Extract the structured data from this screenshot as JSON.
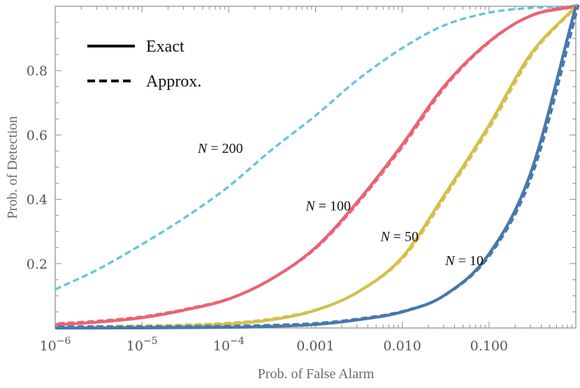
{
  "chart_data": {
    "type": "line",
    "title": "",
    "xlabel": "Prob. of False Alarm",
    "ylabel": "Prob. of Detection",
    "xscale": "log",
    "xlim": [
      1e-06,
      1
    ],
    "ylim": [
      0,
      1
    ],
    "xticks": [
      {
        "value": 1e-06,
        "base": "10",
        "exp": "−6"
      },
      {
        "value": 1e-05,
        "base": "10",
        "exp": "−5"
      },
      {
        "value": 0.0001,
        "base": "10",
        "exp": "−4"
      },
      {
        "value": 0.001,
        "label": "0.001"
      },
      {
        "value": 0.01,
        "label": "0.010"
      },
      {
        "value": 0.1,
        "label": "0.100"
      }
    ],
    "yticks": [
      {
        "value": 0.2,
        "label": "0.2"
      },
      {
        "value": 0.4,
        "label": "0.4"
      },
      {
        "value": 0.6,
        "label": "0.6"
      },
      {
        "value": 0.8,
        "label": "0.8"
      }
    ],
    "legend": {
      "position": "top-left",
      "entries": [
        {
          "label": "Exact",
          "style": "solid"
        },
        {
          "label": "Approx.",
          "style": "dashed"
        }
      ]
    },
    "series": [
      {
        "name": "N = 200",
        "label_n": "N",
        "label_eq": " = 200",
        "color": "#62c6e0",
        "styles": [
          "dashed"
        ],
        "label_at": {
          "x": 8e-05,
          "y": 0.545
        },
        "x": [
          1e-06,
          3e-06,
          1e-05,
          3e-05,
          0.0001,
          0.0003,
          0.001,
          0.003,
          0.01,
          0.03,
          0.1,
          0.3,
          1
        ],
        "y": [
          0.12,
          0.18,
          0.26,
          0.34,
          0.44,
          0.55,
          0.66,
          0.77,
          0.87,
          0.94,
          0.98,
          0.995,
          1.0
        ]
      },
      {
        "name": "N = 100",
        "label_n": "N",
        "label_eq": " = 100",
        "color": "#ea6373",
        "styles": [
          "solid",
          "dashed"
        ],
        "label_at": {
          "x": 0.0014,
          "y": 0.365
        },
        "x": [
          1e-06,
          3e-06,
          1e-05,
          3e-05,
          0.0001,
          0.0003,
          0.001,
          0.003,
          0.01,
          0.03,
          0.1,
          0.3,
          1
        ],
        "y": [
          0.01,
          0.018,
          0.032,
          0.055,
          0.09,
          0.15,
          0.25,
          0.39,
          0.57,
          0.75,
          0.89,
          0.97,
          1.0
        ]
      },
      {
        "name": "N = 50",
        "label_n": "N",
        "label_eq": " = 50",
        "color": "#d2c04c",
        "styles": [
          "solid",
          "dashed"
        ],
        "label_at": {
          "x": 0.0093,
          "y": 0.27
        },
        "x": [
          1e-06,
          3e-06,
          1e-05,
          3e-05,
          0.0001,
          0.0003,
          0.001,
          0.003,
          0.01,
          0.03,
          0.1,
          0.3,
          1
        ],
        "y": [
          0.0005,
          0.001,
          0.003,
          0.006,
          0.012,
          0.025,
          0.055,
          0.11,
          0.22,
          0.41,
          0.63,
          0.85,
          1.0
        ]
      },
      {
        "name": "N = 10",
        "label_n": "N",
        "label_eq": " = 10",
        "color": "#4679ad",
        "styles": [
          "solid",
          "dashed"
        ],
        "label_at": {
          "x": 0.052,
          "y": 0.195
        },
        "x": [
          1e-06,
          3e-06,
          1e-05,
          3e-05,
          0.0001,
          0.0003,
          0.001,
          0.003,
          0.01,
          0.03,
          0.1,
          0.3,
          1
        ],
        "y": [
          0.0,
          0.0,
          0.0003,
          0.001,
          0.002,
          0.005,
          0.011,
          0.025,
          0.05,
          0.1,
          0.23,
          0.48,
          1.0
        ]
      }
    ]
  }
}
